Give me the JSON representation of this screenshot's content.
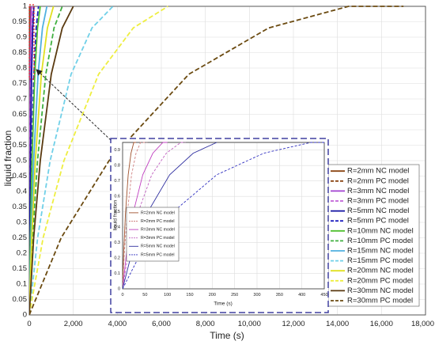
{
  "chart_data": [
    {
      "type": "line",
      "x_label": "Time (s)",
      "y_label": "liquid fraction",
      "xlim": [
        0,
        18000
      ],
      "xticks": [
        0,
        {
          "value": 2000,
          "label": "2,000"
        },
        {
          "value": 4000,
          "label": "4,000"
        },
        {
          "value": 6000,
          "label": "6,000"
        },
        {
          "value": 8000,
          "label": "8,000"
        },
        {
          "value": 10000,
          "label": "10,000"
        },
        {
          "value": 12000,
          "label": "12,000"
        },
        {
          "value": 14000,
          "label": "14,000"
        },
        {
          "value": 16000,
          "label": "16,000"
        },
        {
          "value": 18000,
          "label": "18,000"
        }
      ],
      "ylim": [
        0,
        1
      ],
      "yticks": [
        0,
        0.05,
        0.1,
        0.15,
        0.2,
        0.25,
        0.3,
        0.35,
        0.4,
        0.45,
        0.5,
        0.55,
        0.6,
        0.65,
        0.7,
        0.75,
        0.8,
        0.85,
        0.9,
        0.95,
        1
      ],
      "grid": true,
      "legend": "lower right",
      "series": [
        {
          "name": "R=2mm NC model",
          "color": "#8b4513",
          "dash": false,
          "x": [
            0,
            2.5,
            6.25,
            12.5,
            18.75,
            25
          ],
          "values": [
            0,
            0.25,
            0.5,
            0.78,
            0.93,
            1
          ]
        },
        {
          "name": "R=2mm PC model",
          "color": "#8b4513",
          "dash": true,
          "x": [
            0,
            4,
            10,
            20,
            30,
            40
          ],
          "values": [
            0,
            0.25,
            0.5,
            0.78,
            0.93,
            1
          ]
        },
        {
          "name": "R=3mm NC model",
          "color": "#a040d0",
          "dash": false,
          "x": [
            0,
            9,
            22.5,
            45,
            67.5,
            90
          ],
          "values": [
            0,
            0.25,
            0.5,
            0.78,
            0.93,
            1
          ]
        },
        {
          "name": "R=3mm PC model",
          "color": "#c060d8",
          "dash": true,
          "x": [
            0,
            13,
            32.5,
            65,
            97.5,
            130
          ],
          "values": [
            0,
            0.25,
            0.5,
            0.78,
            0.93,
            1
          ]
        },
        {
          "name": "R=5mm NC model",
          "color": "#1010a0",
          "dash": false,
          "x": [
            0,
            21,
            52.5,
            105,
            157.5,
            210
          ],
          "values": [
            0,
            0.25,
            0.5,
            0.78,
            0.93,
            1
          ]
        },
        {
          "name": "R=5mm PC model",
          "color": "#2020c0",
          "dash": true,
          "x": [
            0,
            42,
            105,
            210,
            315,
            420
          ],
          "values": [
            0,
            0.25,
            0.5,
            0.78,
            0.93,
            1
          ]
        },
        {
          "name": "R=10mm NC model",
          "color": "#50c030",
          "dash": false,
          "x": [
            0,
            50,
            125,
            250,
            375,
            500
          ],
          "values": [
            0,
            0.25,
            0.5,
            0.78,
            0.93,
            1
          ]
        },
        {
          "name": "R=10mm PC model",
          "color": "#40b040",
          "dash": true,
          "x": [
            0,
            150,
            375,
            750,
            1125,
            1500
          ],
          "values": [
            0,
            0.25,
            0.5,
            0.78,
            0.93,
            1
          ]
        },
        {
          "name": "R=15mm NC model",
          "color": "#50b0e0",
          "dash": false,
          "x": [
            0,
            80,
            200,
            400,
            600,
            800
          ],
          "values": [
            0,
            0.25,
            0.5,
            0.78,
            0.93,
            1
          ]
        },
        {
          "name": "R=15mm PC model",
          "color": "#70d0e8",
          "dash": true,
          "x": [
            0,
            380,
            950,
            1900,
            2850,
            3800
          ],
          "values": [
            0,
            0.25,
            0.5,
            0.78,
            0.93,
            1
          ]
        },
        {
          "name": "R=20mm NC model",
          "color": "#e0e020",
          "dash": false,
          "x": [
            0,
            110,
            275,
            550,
            825,
            1100
          ],
          "values": [
            0,
            0.25,
            0.5,
            0.78,
            0.93,
            1
          ]
        },
        {
          "name": "R=20mm PC model",
          "color": "#eeee40",
          "dash": true,
          "x": [
            0,
            630,
            1575,
            3150,
            4725,
            6300
          ],
          "values": [
            0,
            0.25,
            0.5,
            0.78,
            0.93,
            1
          ]
        },
        {
          "name": "R=30mm NC model",
          "color": "#5a3a10",
          "dash": false,
          "x": [
            0,
            200,
            500,
            1000,
            1500,
            2000
          ],
          "values": [
            0,
            0.25,
            0.5,
            0.78,
            0.93,
            1
          ]
        },
        {
          "name": "R=30mm PC model",
          "color": "#6b4a10",
          "dash": true,
          "x": [
            0,
            1450,
            3625,
            7250,
            10875,
            14500,
            17000
          ],
          "values": [
            0,
            0.25,
            0.5,
            0.78,
            0.93,
            1,
            1
          ]
        }
      ]
    },
    {
      "type": "line",
      "x_label": "Time (s)",
      "y_label": "liquid fraction",
      "xlim": [
        0,
        450
      ],
      "xticks": [
        0,
        50,
        100,
        150,
        200,
        250,
        300,
        350,
        400,
        450
      ],
      "ylim": [
        0,
        0.95
      ],
      "yticks": [
        0,
        0.1,
        0.2,
        0.3,
        0.4,
        0.5,
        0.6,
        0.7,
        0.8,
        0.9
      ],
      "grid": true,
      "legend": "center left",
      "series": [
        {
          "name": "R=2mm NC model",
          "color": "#a0522d",
          "dash": false,
          "x": [
            0,
            2.5,
            6.25,
            12.5,
            18.75,
            25,
            30
          ],
          "values": [
            0,
            0.24,
            0.48,
            0.74,
            0.88,
            0.95,
            0.95
          ]
        },
        {
          "name": "R=2mm PC model",
          "color": "#d08080",
          "dash": true,
          "x": [
            0,
            4,
            10,
            20,
            30,
            40,
            55
          ],
          "values": [
            0,
            0.24,
            0.48,
            0.74,
            0.88,
            0.95,
            0.95
          ]
        },
        {
          "name": "R=3mm NC model",
          "color": "#c040c0",
          "dash": false,
          "x": [
            0,
            9,
            22.5,
            45,
            67.5,
            90,
            100
          ],
          "values": [
            0,
            0.24,
            0.48,
            0.74,
            0.88,
            0.95,
            0.95
          ]
        },
        {
          "name": "R=3mm PC model",
          "color": "#c060c0",
          "dash": true,
          "x": [
            0,
            13,
            32.5,
            65,
            97.5,
            130,
            140
          ],
          "values": [
            0,
            0.24,
            0.48,
            0.74,
            0.88,
            0.95,
            0.95
          ]
        },
        {
          "name": "R=5mm NC model",
          "color": "#3030a0",
          "dash": false,
          "x": [
            0,
            21,
            52.5,
            105,
            157.5,
            210
          ],
          "values": [
            0,
            0.24,
            0.48,
            0.74,
            0.88,
            0.95
          ]
        },
        {
          "name": "R=5mm PC model",
          "color": "#3030c0",
          "dash": true,
          "x": [
            0,
            42,
            105,
            210,
            315,
            420,
            450
          ],
          "values": [
            0,
            0.24,
            0.48,
            0.74,
            0.88,
            0.95,
            0.95
          ]
        }
      ]
    }
  ]
}
